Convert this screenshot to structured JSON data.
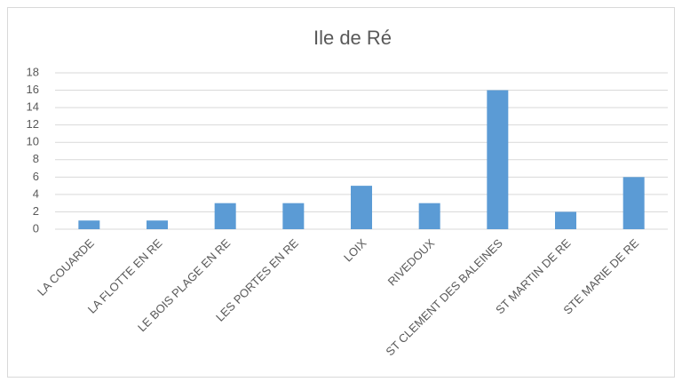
{
  "chart_data": {
    "type": "bar",
    "title": "Ile de Ré",
    "categories": [
      "LA COUARDE",
      "LA FLOTTE EN RE",
      "LE BOIS PLAGE EN RE",
      "LES PORTES EN RE",
      "LOIX",
      "RIVEDOUX",
      "ST CLEMENT DES BALEINES",
      "ST MARTIN DE RE",
      "STE MARIE DE RE"
    ],
    "values": [
      1,
      1,
      3,
      3,
      5,
      3,
      16,
      2,
      6
    ],
    "color": "#5b9bd5",
    "ylim": [
      0,
      18
    ],
    "yticks": [
      0,
      2,
      4,
      6,
      8,
      10,
      12,
      14,
      16,
      18
    ],
    "grid": true
  }
}
